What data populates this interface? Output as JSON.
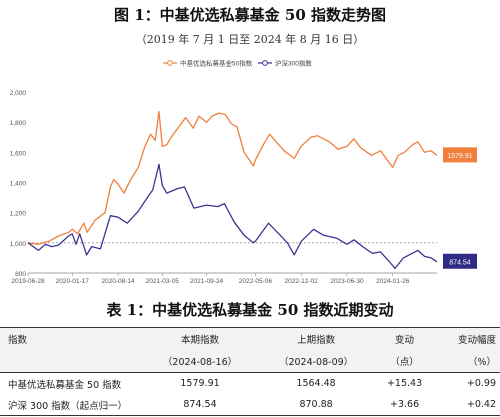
{
  "figure": {
    "title": "图 1：中基优选私募基金 50 指数走势图",
    "subtitle": "（2019 年 7 月 1 日至 2024 年 8 月 16 日）"
  },
  "colors": {
    "fund_line": "#f07f3c",
    "hs300_line": "#3a3592",
    "fund_badge": "#f07f3c",
    "hs300_badge": "#2f2a86",
    "baseline": "#999999",
    "axis": "#888888"
  },
  "chart_data": {
    "type": "line",
    "ylim": [
      800,
      2000
    ],
    "yticks": [
      800,
      1000,
      1200,
      1400,
      1600,
      1800,
      2000
    ],
    "ytick_labels": [
      "800",
      "1,000",
      "1,200",
      "1,400",
      "1,600",
      "1,800",
      "2,000"
    ],
    "xticks": [
      "2019-06-28",
      "2020-01-17",
      "2020-08-14",
      "2021-03-05",
      "2021-09-24",
      "2022-05-06",
      "2022-12-02",
      "2023-06-30",
      "2024-01-26"
    ],
    "x_range": [
      "2019-06-28",
      "2024-08-16"
    ],
    "baseline": 1000,
    "legend_position": "top-center",
    "series": [
      {
        "name": "中基优选私募基金50指数",
        "end_label": "1579.91",
        "points": [
          [
            "2019-06-28",
            1000
          ],
          [
            "2019-08-15",
            990
          ],
          [
            "2019-10-01",
            1010
          ],
          [
            "2019-11-15",
            1045
          ],
          [
            "2020-01-01",
            1070
          ],
          [
            "2020-01-17",
            1090
          ],
          [
            "2020-02-10",
            1060
          ],
          [
            "2020-03-10",
            1130
          ],
          [
            "2020-03-25",
            1070
          ],
          [
            "2020-05-01",
            1150
          ],
          [
            "2020-06-15",
            1200
          ],
          [
            "2020-07-10",
            1370
          ],
          [
            "2020-07-25",
            1420
          ],
          [
            "2020-08-14",
            1390
          ],
          [
            "2020-09-10",
            1330
          ],
          [
            "2020-10-15",
            1430
          ],
          [
            "2020-11-15",
            1500
          ],
          [
            "2020-12-15",
            1640
          ],
          [
            "2021-01-10",
            1720
          ],
          [
            "2021-02-01",
            1680
          ],
          [
            "2021-02-18",
            1870
          ],
          [
            "2021-03-05",
            1640
          ],
          [
            "2021-03-25",
            1650
          ],
          [
            "2021-04-15",
            1700
          ],
          [
            "2021-05-15",
            1760
          ],
          [
            "2021-06-20",
            1830
          ],
          [
            "2021-07-25",
            1760
          ],
          [
            "2021-08-20",
            1840
          ],
          [
            "2021-09-24",
            1800
          ],
          [
            "2021-10-20",
            1840
          ],
          [
            "2021-11-20",
            1860
          ],
          [
            "2021-12-20",
            1850
          ],
          [
            "2022-01-15",
            1790
          ],
          [
            "2022-02-10",
            1770
          ],
          [
            "2022-03-15",
            1600
          ],
          [
            "2022-04-27",
            1510
          ],
          [
            "2022-05-06",
            1550
          ],
          [
            "2022-06-15",
            1660
          ],
          [
            "2022-07-10",
            1720
          ],
          [
            "2022-08-15",
            1660
          ],
          [
            "2022-09-15",
            1610
          ],
          [
            "2022-10-31",
            1560
          ],
          [
            "2022-12-02",
            1640
          ],
          [
            "2023-01-15",
            1700
          ],
          [
            "2023-02-15",
            1710
          ],
          [
            "2023-04-10",
            1670
          ],
          [
            "2023-05-20",
            1620
          ],
          [
            "2023-06-30",
            1640
          ],
          [
            "2023-08-01",
            1690
          ],
          [
            "2023-09-01",
            1630
          ],
          [
            "2023-10-20",
            1580
          ],
          [
            "2023-12-01",
            1610
          ],
          [
            "2024-01-26",
            1500
          ],
          [
            "2024-02-20",
            1580
          ],
          [
            "2024-03-20",
            1600
          ],
          [
            "2024-04-25",
            1650
          ],
          [
            "2024-05-20",
            1670
          ],
          [
            "2024-06-20",
            1600
          ],
          [
            "2024-07-20",
            1610
          ],
          [
            "2024-08-16",
            1579.91
          ]
        ]
      },
      {
        "name": "沪深300指数",
        "end_label": "874.54",
        "points": [
          [
            "2019-06-28",
            1000
          ],
          [
            "2019-08-15",
            950
          ],
          [
            "2019-09-15",
            990
          ],
          [
            "2019-10-15",
            975
          ],
          [
            "2019-11-15",
            985
          ],
          [
            "2019-12-31",
            1045
          ],
          [
            "2020-01-17",
            1060
          ],
          [
            "2020-02-03",
            990
          ],
          [
            "2020-02-20",
            1060
          ],
          [
            "2020-03-23",
            920
          ],
          [
            "2020-04-15",
            975
          ],
          [
            "2020-05-25",
            960
          ],
          [
            "2020-07-10",
            1180
          ],
          [
            "2020-08-14",
            1170
          ],
          [
            "2020-09-25",
            1130
          ],
          [
            "2020-11-15",
            1210
          ],
          [
            "2020-12-31",
            1310
          ],
          [
            "2021-01-20",
            1350
          ],
          [
            "2021-02-18",
            1520
          ],
          [
            "2021-03-05",
            1380
          ],
          [
            "2021-03-25",
            1330
          ],
          [
            "2021-05-15",
            1360
          ],
          [
            "2021-06-15",
            1370
          ],
          [
            "2021-07-28",
            1230
          ],
          [
            "2021-09-24",
            1250
          ],
          [
            "2021-11-15",
            1240
          ],
          [
            "2021-12-15",
            1260
          ],
          [
            "2022-01-28",
            1140
          ],
          [
            "2022-03-15",
            1050
          ],
          [
            "2022-04-26",
            1000
          ],
          [
            "2022-05-06",
            1010
          ],
          [
            "2022-07-05",
            1130
          ],
          [
            "2022-08-15",
            1070
          ],
          [
            "2022-09-30",
            1000
          ],
          [
            "2022-10-31",
            920
          ],
          [
            "2022-12-02",
            1010
          ],
          [
            "2023-01-28",
            1090
          ],
          [
            "2023-03-15",
            1050
          ],
          [
            "2023-05-15",
            1030
          ],
          [
            "2023-06-30",
            990
          ],
          [
            "2023-08-01",
            1020
          ],
          [
            "2023-09-15",
            970
          ],
          [
            "2023-10-25",
            930
          ],
          [
            "2023-12-01",
            940
          ],
          [
            "2024-01-26",
            850
          ],
          [
            "2024-02-05",
            830
          ],
          [
            "2024-03-15",
            900
          ],
          [
            "2024-05-20",
            950
          ],
          [
            "2024-06-20",
            910
          ],
          [
            "2024-07-20",
            900
          ],
          [
            "2024-08-16",
            874.54
          ]
        ]
      }
    ]
  },
  "table": {
    "title": "表 1：中基优选私募基金 50 指数近期变动",
    "headers_row1": [
      "指数",
      "本期指数",
      "上期指数",
      "变动",
      "变动幅度"
    ],
    "headers_row2": [
      "",
      "（2024-08-16）",
      "（2024-08-09）",
      "（点）",
      "（%）"
    ],
    "rows": [
      [
        "中基优选私募基金 50 指数",
        "1579.91",
        "1564.48",
        "+15.43",
        "+0.99"
      ],
      [
        "沪深 300 指数（起点归一）",
        "874.54",
        "870.88",
        "+3.66",
        "+0.42"
      ]
    ]
  }
}
